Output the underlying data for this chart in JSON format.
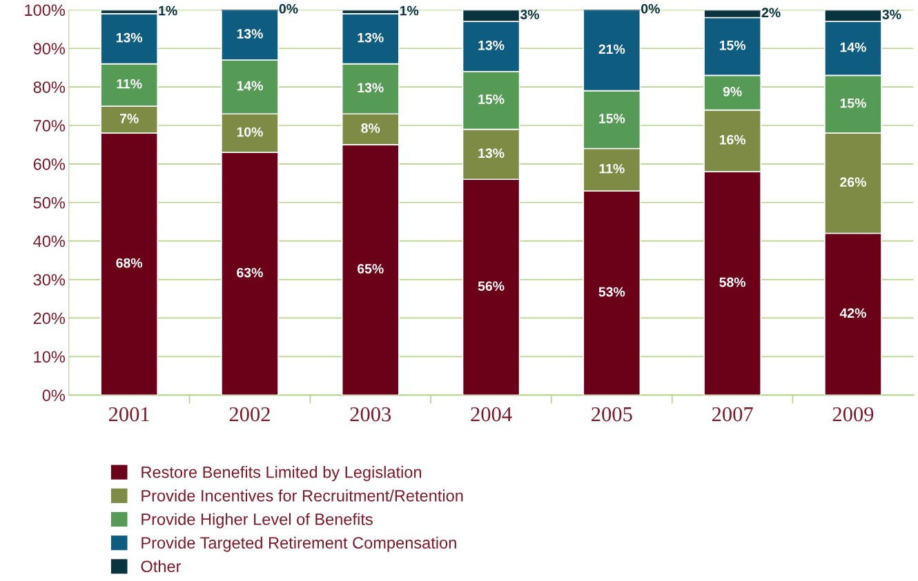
{
  "chart_data": {
    "type": "bar",
    "stacked": true,
    "categories": [
      "2001",
      "2002",
      "2003",
      "2004",
      "2005",
      "2007",
      "2009"
    ],
    "series": [
      {
        "name": "Restore Benefits Limited by Legislation",
        "color": "#6b0019",
        "values": [
          68,
          63,
          65,
          56,
          53,
          58,
          42
        ],
        "value_labels": [
          "68%",
          "63%",
          "65%",
          "56%",
          "53%",
          "58%",
          "42%"
        ]
      },
      {
        "name": "Provide Incentives for Recruitment/Retention",
        "color": "#7d8b45",
        "values": [
          7,
          10,
          8,
          13,
          11,
          16,
          26
        ],
        "value_labels": [
          "7%",
          "10%",
          "8%",
          "13%",
          "11%",
          "16%",
          "26%"
        ]
      },
      {
        "name": "Provide Higher Level of Benefits",
        "color": "#559a55",
        "values": [
          11,
          14,
          13,
          15,
          15,
          9,
          15
        ],
        "value_labels": [
          "11%",
          "14%",
          "13%",
          "15%",
          "15%",
          "9%",
          "15%"
        ]
      },
      {
        "name": "Provide Targeted Retirement Compensation",
        "color": "#0e5c80",
        "values": [
          13,
          13,
          13,
          13,
          21,
          15,
          14
        ],
        "value_labels": [
          "13%",
          "13%",
          "13%",
          "13%",
          "21%",
          "15%",
          "14%"
        ]
      },
      {
        "name": "Other",
        "color": "#0a3340",
        "values": [
          1,
          0,
          1,
          3,
          0,
          2,
          3
        ],
        "value_labels": [
          "1%",
          "0%",
          "1%",
          "3%",
          "0%",
          "2%",
          "3%"
        ]
      }
    ],
    "ylim": [
      0,
      100
    ],
    "yticks": [
      {
        "value": 0,
        "label": "0%"
      },
      {
        "value": 10,
        "label": "10%"
      },
      {
        "value": 20,
        "label": "20%"
      },
      {
        "value": 30,
        "label": "30%"
      },
      {
        "value": 40,
        "label": "40%"
      },
      {
        "value": 50,
        "label": "50%"
      },
      {
        "value": 60,
        "label": "60%"
      },
      {
        "value": 70,
        "label": "70%"
      },
      {
        "value": 80,
        "label": "80%"
      },
      {
        "value": 90,
        "label": "90%"
      },
      {
        "value": 100,
        "label": "100%"
      }
    ],
    "grid": "y",
    "legend": "bottom left"
  }
}
